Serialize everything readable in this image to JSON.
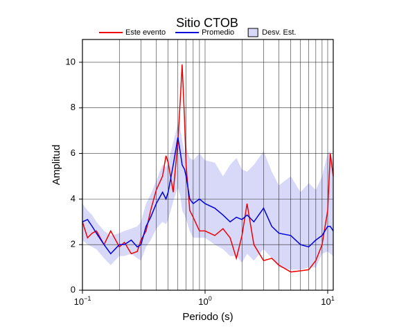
{
  "chart_data": {
    "type": "line",
    "title": "Sitio CTOB",
    "xlabel": "Periodo (s)",
    "ylabel": "Amplitud",
    "xscale": "log",
    "grid": true,
    "xlim": [
      0.1,
      11.1
    ],
    "ylim": [
      0,
      11
    ],
    "xticks": [
      {
        "value": 0.1,
        "label": "10",
        "exponent": "−1"
      },
      {
        "value": 1,
        "label": "10",
        "exponent": "0"
      },
      {
        "value": 10,
        "label": "10",
        "exponent": "1"
      }
    ],
    "xgrid": [
      0.2,
      0.3,
      0.4,
      0.5,
      0.6,
      0.7,
      0.8,
      0.9,
      2,
      3,
      4,
      5,
      6,
      7,
      8,
      9
    ],
    "yticks": [
      0,
      2,
      4,
      6,
      8,
      10
    ],
    "x": [
      0.1,
      0.11,
      0.12,
      0.13,
      0.15,
      0.17,
      0.2,
      0.22,
      0.25,
      0.28,
      0.3,
      0.33,
      0.36,
      0.4,
      0.45,
      0.48,
      0.5,
      0.55,
      0.6,
      0.63,
      0.65,
      0.68,
      0.7,
      0.75,
      0.8,
      0.9,
      1.0,
      1.2,
      1.4,
      1.6,
      1.8,
      2.0,
      2.2,
      2.5,
      3.0,
      3.5,
      4.0,
      5.0,
      6.0,
      7.0,
      8.0,
      9.0,
      10.0,
      10.5,
      11.1
    ],
    "band": {
      "name": "Desv. Est.",
      "color": "#d8d8f8",
      "edge": "#000000",
      "upper": [
        3.8,
        3.5,
        3.3,
        3.0,
        2.6,
        2.4,
        2.5,
        2.6,
        2.7,
        2.8,
        3.0,
        3.8,
        4.2,
        4.8,
        5.5,
        5.4,
        5.6,
        6.5,
        7.3,
        7.0,
        6.6,
        6.0,
        6.3,
        5.8,
        5.7,
        6.0,
        5.7,
        5.6,
        5.0,
        5.5,
        5.8,
        5.3,
        5.2,
        5.5,
        6.1,
        5.2,
        4.6,
        5.0,
        4.3,
        4.7,
        4.4,
        5.0,
        6.0,
        6.1,
        5.5
      ],
      "lower": [
        2.2,
        2.0,
        1.9,
        1.8,
        1.4,
        1.1,
        1.5,
        1.5,
        1.6,
        1.4,
        1.3,
        1.9,
        2.2,
        2.7,
        3.0,
        2.9,
        3.1,
        3.9,
        4.5,
        4.1,
        3.5,
        3.3,
        3.1,
        2.6,
        2.3,
        2.3,
        2.3,
        2.0,
        1.8,
        1.5,
        1.5,
        1.2,
        1.6,
        1.3,
        1.8,
        1.4,
        1.0,
        0.9,
        0.9,
        1.0,
        1.0,
        1.6,
        1.7,
        1.6,
        1.5
      ]
    },
    "series": [
      {
        "name": "Este evento",
        "color": "#ee0000",
        "values": [
          3.0,
          2.3,
          2.5,
          2.6,
          2.0,
          2.6,
          1.9,
          2.1,
          1.6,
          1.7,
          2.2,
          2.6,
          3.5,
          4.4,
          5.0,
          5.9,
          5.6,
          4.3,
          6.5,
          8.5,
          9.9,
          7.5,
          5.5,
          3.5,
          3.2,
          2.6,
          2.6,
          2.4,
          2.7,
          2.3,
          1.4,
          2.4,
          3.8,
          2.0,
          1.3,
          1.4,
          1.1,
          0.8,
          0.85,
          0.9,
          1.3,
          2.0,
          3.5,
          6.0,
          5.0
        ]
      },
      {
        "name": "Promedio",
        "color": "#0000dd",
        "values": [
          3.0,
          3.1,
          2.8,
          2.5,
          2.0,
          1.6,
          2.0,
          2.0,
          2.2,
          1.9,
          2.0,
          2.8,
          3.2,
          3.8,
          4.3,
          4.0,
          4.3,
          5.5,
          6.7,
          6.0,
          5.5,
          5.3,
          5.0,
          4.0,
          3.8,
          4.0,
          3.8,
          3.6,
          3.3,
          3.0,
          3.2,
          3.1,
          3.3,
          3.0,
          3.6,
          2.8,
          2.5,
          2.4,
          2.0,
          1.9,
          2.2,
          2.4,
          2.8,
          2.8,
          2.6
        ]
      }
    ]
  }
}
